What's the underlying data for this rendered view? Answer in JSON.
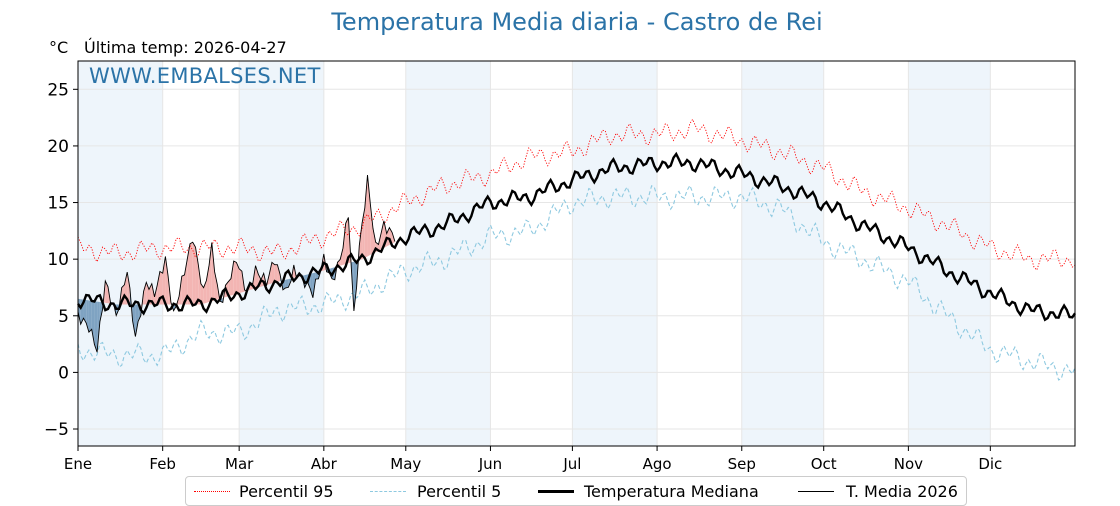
{
  "header": {
    "title": "Temperatura Media diaria - Castro de Rei",
    "unit_label": "°C",
    "last_temp_label": "Última temp: 2026-04-27",
    "watermark": "WWW.EMBALSES.NET"
  },
  "legend": {
    "items": [
      {
        "label": "Percentil 95",
        "color": "#ff0000",
        "style": "dotted"
      },
      {
        "label": "Percentil 5",
        "color": "#8ec9e0",
        "style": "dashed"
      },
      {
        "label": "Temperatura Mediana",
        "color": "#000000",
        "style": "solid-thick"
      },
      {
        "label": "T. Media 2026",
        "color": "#000000",
        "style": "solid"
      }
    ]
  },
  "colors": {
    "title": "#2b73a7",
    "above_median_fill": "#f3b5b3",
    "below_median_fill": "#7fa3c2",
    "month_band": "#eef5fb"
  },
  "chart_data": {
    "type": "line",
    "title": "Temperatura Media diaria - Castro de Rei",
    "xlabel": "",
    "ylabel": "°C",
    "xlim": [
      1,
      366
    ],
    "ylim": [
      -6.5,
      27.5
    ],
    "yticks": [
      -5,
      0,
      5,
      10,
      15,
      20,
      25
    ],
    "months": [
      "Ene",
      "Feb",
      "Mar",
      "Abr",
      "May",
      "Jun",
      "Jul",
      "Ago",
      "Sep",
      "Oct",
      "Nov",
      "Dic"
    ],
    "month_start_days": [
      1,
      32,
      60,
      91,
      121,
      152,
      182,
      213,
      244,
      274,
      305,
      335
    ],
    "grid": true,
    "series": [
      {
        "name": "Percentil 95",
        "x": [
          1,
          15,
          32,
          46,
          60,
          74,
          91,
          105,
          121,
          135,
          152,
          166,
          182,
          196,
          213,
          227,
          244,
          258,
          274,
          288,
          305,
          319,
          335,
          349,
          366
        ],
        "values": [
          11,
          10.5,
          11,
          11,
          11,
          10.5,
          12,
          13,
          15,
          16.5,
          17.5,
          19,
          19.5,
          21,
          21,
          21.5,
          20.5,
          19.5,
          18,
          16,
          14.5,
          13,
          11,
          10,
          10
        ]
      },
      {
        "name": "Percentil 5",
        "x": [
          1,
          15,
          32,
          46,
          60,
          74,
          91,
          105,
          121,
          135,
          152,
          166,
          182,
          196,
          213,
          227,
          244,
          258,
          274,
          288,
          305,
          319,
          335,
          349,
          366
        ],
        "values": [
          2,
          1.5,
          1.5,
          3.5,
          3.5,
          5.5,
          6,
          7,
          9,
          10,
          12,
          12.5,
          15,
          15.5,
          15.5,
          15.5,
          15.5,
          14.5,
          11.5,
          10,
          8,
          5,
          2,
          1,
          0
        ]
      },
      {
        "name": "Temperatura Mediana",
        "x": [
          1,
          15,
          32,
          46,
          60,
          74,
          91,
          105,
          121,
          135,
          152,
          166,
          182,
          196,
          213,
          227,
          244,
          258,
          274,
          288,
          305,
          319,
          335,
          349,
          366
        ],
        "values": [
          6.5,
          6,
          6,
          6,
          7,
          8,
          9,
          10,
          12,
          13,
          15,
          15.5,
          17,
          18,
          18.5,
          18.5,
          17.5,
          16.5,
          15,
          13,
          11,
          9,
          7,
          5.5,
          5
        ]
      },
      {
        "name": "T. Media 2026",
        "x": [
          1,
          5,
          8,
          11,
          15,
          19,
          22,
          26,
          29,
          33,
          36,
          40,
          43,
          47,
          50,
          53,
          56,
          59,
          63,
          66,
          70,
          73,
          77,
          80,
          84,
          87,
          91,
          94,
          97,
          100,
          102,
          104,
          107,
          110,
          113,
          117
        ],
        "values": [
          5,
          4,
          2,
          8,
          5,
          9,
          3,
          8,
          7,
          10,
          5,
          9,
          12,
          7,
          11,
          6,
          8,
          10,
          7,
          9,
          8,
          10,
          7,
          9,
          8,
          7,
          10,
          8,
          10,
          14,
          5,
          11,
          17,
          11,
          13,
          12
        ]
      }
    ]
  }
}
